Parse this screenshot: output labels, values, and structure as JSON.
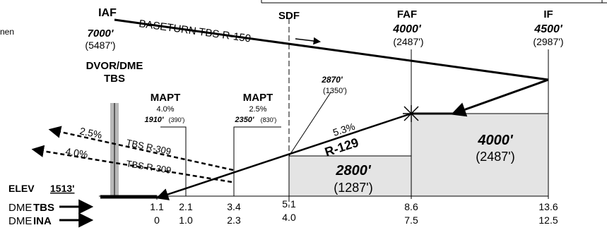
{
  "stray_text": "nen",
  "fixes": {
    "iaf": {
      "name": "IAF",
      "altitude": "7000'",
      "height": "(5487')"
    },
    "sdf": {
      "name": "SDF"
    },
    "faf": {
      "name": "FAF",
      "altitude": "4000'",
      "height": "(2487')"
    },
    "if": {
      "name": "IF",
      "altitude": "4500'",
      "height": "(2987')"
    }
  },
  "baseturn_label": "BASETURN TBS R-150",
  "navaid": {
    "line1": "DVOR/DME",
    "line2": "TBS"
  },
  "mapt_1": {
    "title": "MAPT",
    "gradient": "4.0%",
    "altitude": "1910'",
    "height": "(390')"
  },
  "mapt_2": {
    "title": "MAPT",
    "gradient": "2.5%",
    "altitude": "2350'",
    "height": "(830')"
  },
  "sdf_altitude": {
    "altitude": "2870'",
    "height": "(1350')"
  },
  "final": {
    "gradient": "5.3%",
    "radial": "R-129"
  },
  "missed": [
    {
      "gradient": "2.5%",
      "radial": "TBS R-309"
    },
    {
      "gradient": "4.0%",
      "radial": "TBS R-309"
    }
  ],
  "boxes": {
    "low": {
      "altitude": "2800'",
      "height": "(1287')"
    },
    "high": {
      "altitude": "4000'",
      "height": "(2487')"
    }
  },
  "elev": {
    "label": "ELEV",
    "value": "1513'"
  },
  "dme_rows": [
    {
      "prefix": "DME",
      "station": "TBS",
      "values": [
        "1.1",
        "2.1",
        "3.4",
        "5.1",
        "8.6",
        "13.6"
      ]
    },
    {
      "prefix": "DME",
      "station": "INA",
      "values": [
        "0",
        "1.0",
        "2.3",
        "4.0",
        "7.5",
        "12.5"
      ]
    }
  ],
  "colors": {
    "box_fill": "#e4e4e4",
    "tower_fill": "#b8b8b8",
    "line": "#000000"
  }
}
